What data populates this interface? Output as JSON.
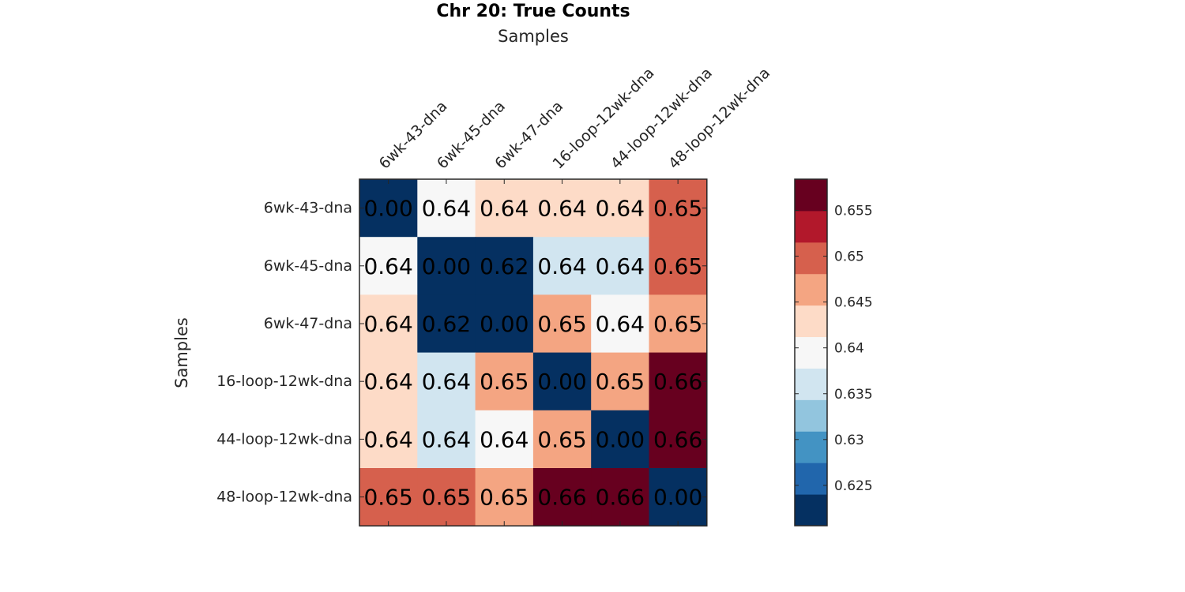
{
  "chart_data": {
    "type": "heatmap",
    "title": "Chr 20: True Counts",
    "xlabel": "Samples",
    "ylabel": "Samples",
    "x_position": "top",
    "categories": [
      "6wk-43-dna",
      "6wk-45-dna",
      "6wk-47-dna",
      "16-loop-12wk-dna",
      "44-loop-12wk-dna",
      "48-loop-12wk-dna"
    ],
    "values": [
      [
        0.0,
        0.64,
        0.64,
        0.64,
        0.64,
        0.65
      ],
      [
        0.64,
        0.0,
        0.62,
        0.64,
        0.64,
        0.65
      ],
      [
        0.64,
        0.62,
        0.0,
        0.65,
        0.64,
        0.65
      ],
      [
        0.64,
        0.64,
        0.65,
        0.0,
        0.65,
        0.66
      ],
      [
        0.64,
        0.64,
        0.64,
        0.65,
        0.0,
        0.66
      ],
      [
        0.65,
        0.65,
        0.65,
        0.66,
        0.66,
        0.0
      ]
    ],
    "cell_colors": [
      [
        "#053061",
        "#f7f7f7",
        "#fddbc7",
        "#fddbc7",
        "#fddbc7",
        "#d6604d"
      ],
      [
        "#f7f7f7",
        "#053061",
        "#053061",
        "#d1e5f0",
        "#d1e5f0",
        "#d6604d"
      ],
      [
        "#fddbc7",
        "#053061",
        "#053061",
        "#f4a582",
        "#f7f7f7",
        "#f4a582"
      ],
      [
        "#fddbc7",
        "#d1e5f0",
        "#f4a582",
        "#053061",
        "#f4a582",
        "#67001f"
      ],
      [
        "#fddbc7",
        "#d1e5f0",
        "#f7f7f7",
        "#f4a582",
        "#053061",
        "#67001f"
      ],
      [
        "#d6604d",
        "#d6604d",
        "#f4a582",
        "#67001f",
        "#67001f",
        "#053061"
      ]
    ],
    "colorbar": {
      "range": [
        0.6206,
        0.6584
      ],
      "colors": [
        "#053061",
        "#2166ac",
        "#4393c3",
        "#92c5de",
        "#d1e5f0",
        "#f7f7f7",
        "#fddbc7",
        "#f4a582",
        "#d6604d",
        "#b2182b",
        "#67001f"
      ],
      "ticks": [
        0.625,
        0.63,
        0.635,
        0.64,
        0.645,
        0.65,
        0.655
      ],
      "tick_labels": [
        "0.625",
        "0.63",
        "0.635",
        "0.64",
        "0.645",
        "0.65",
        "0.655"
      ]
    },
    "grid": false,
    "legend": "colorbar-right"
  }
}
